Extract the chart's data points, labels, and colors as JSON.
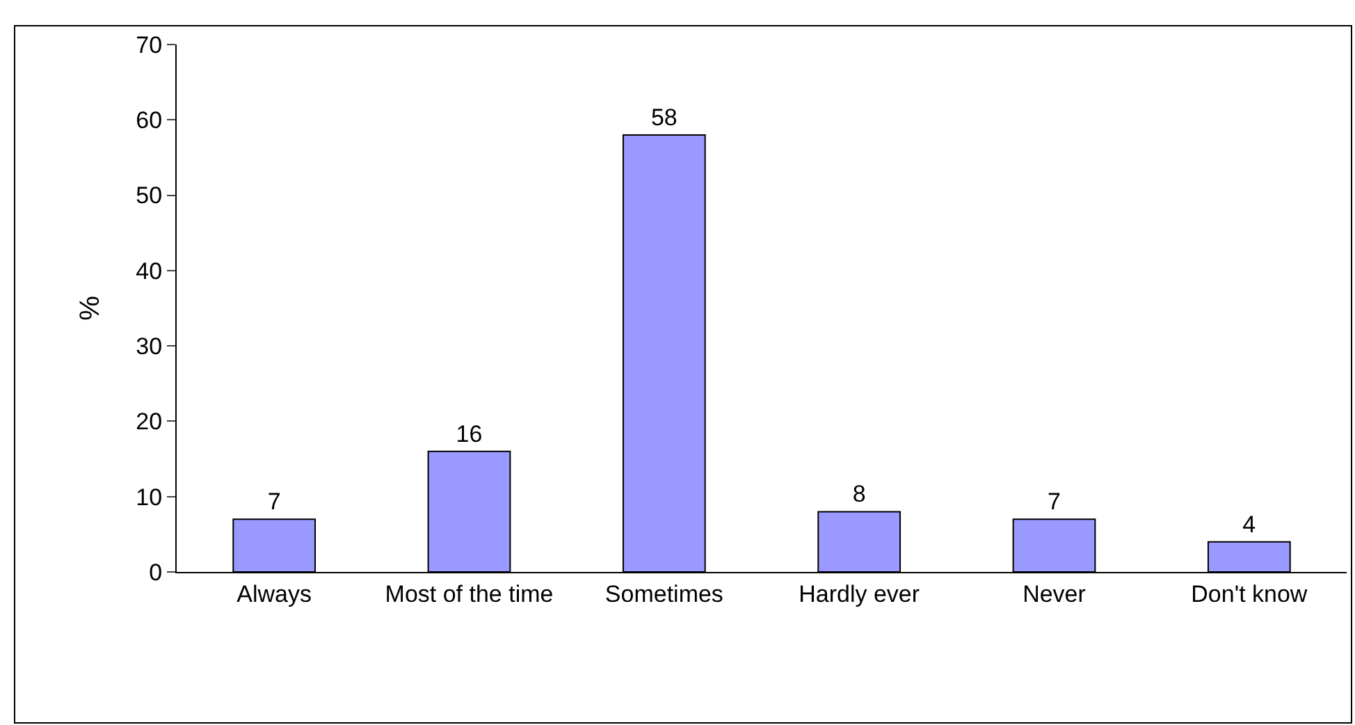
{
  "chart_data": {
    "type": "bar",
    "ylabel": "%",
    "categories": [
      "Always",
      "Most of the time",
      "Sometimes",
      "Hardly ever",
      "Never",
      "Don't know"
    ],
    "values": [
      7,
      16,
      58,
      8,
      7,
      4
    ],
    "color": "#9999ff",
    "ylim": [
      0,
      70
    ],
    "yticks": [
      0,
      10,
      20,
      30,
      40,
      50,
      60,
      70
    ],
    "grid": false,
    "data_labels": true
  }
}
